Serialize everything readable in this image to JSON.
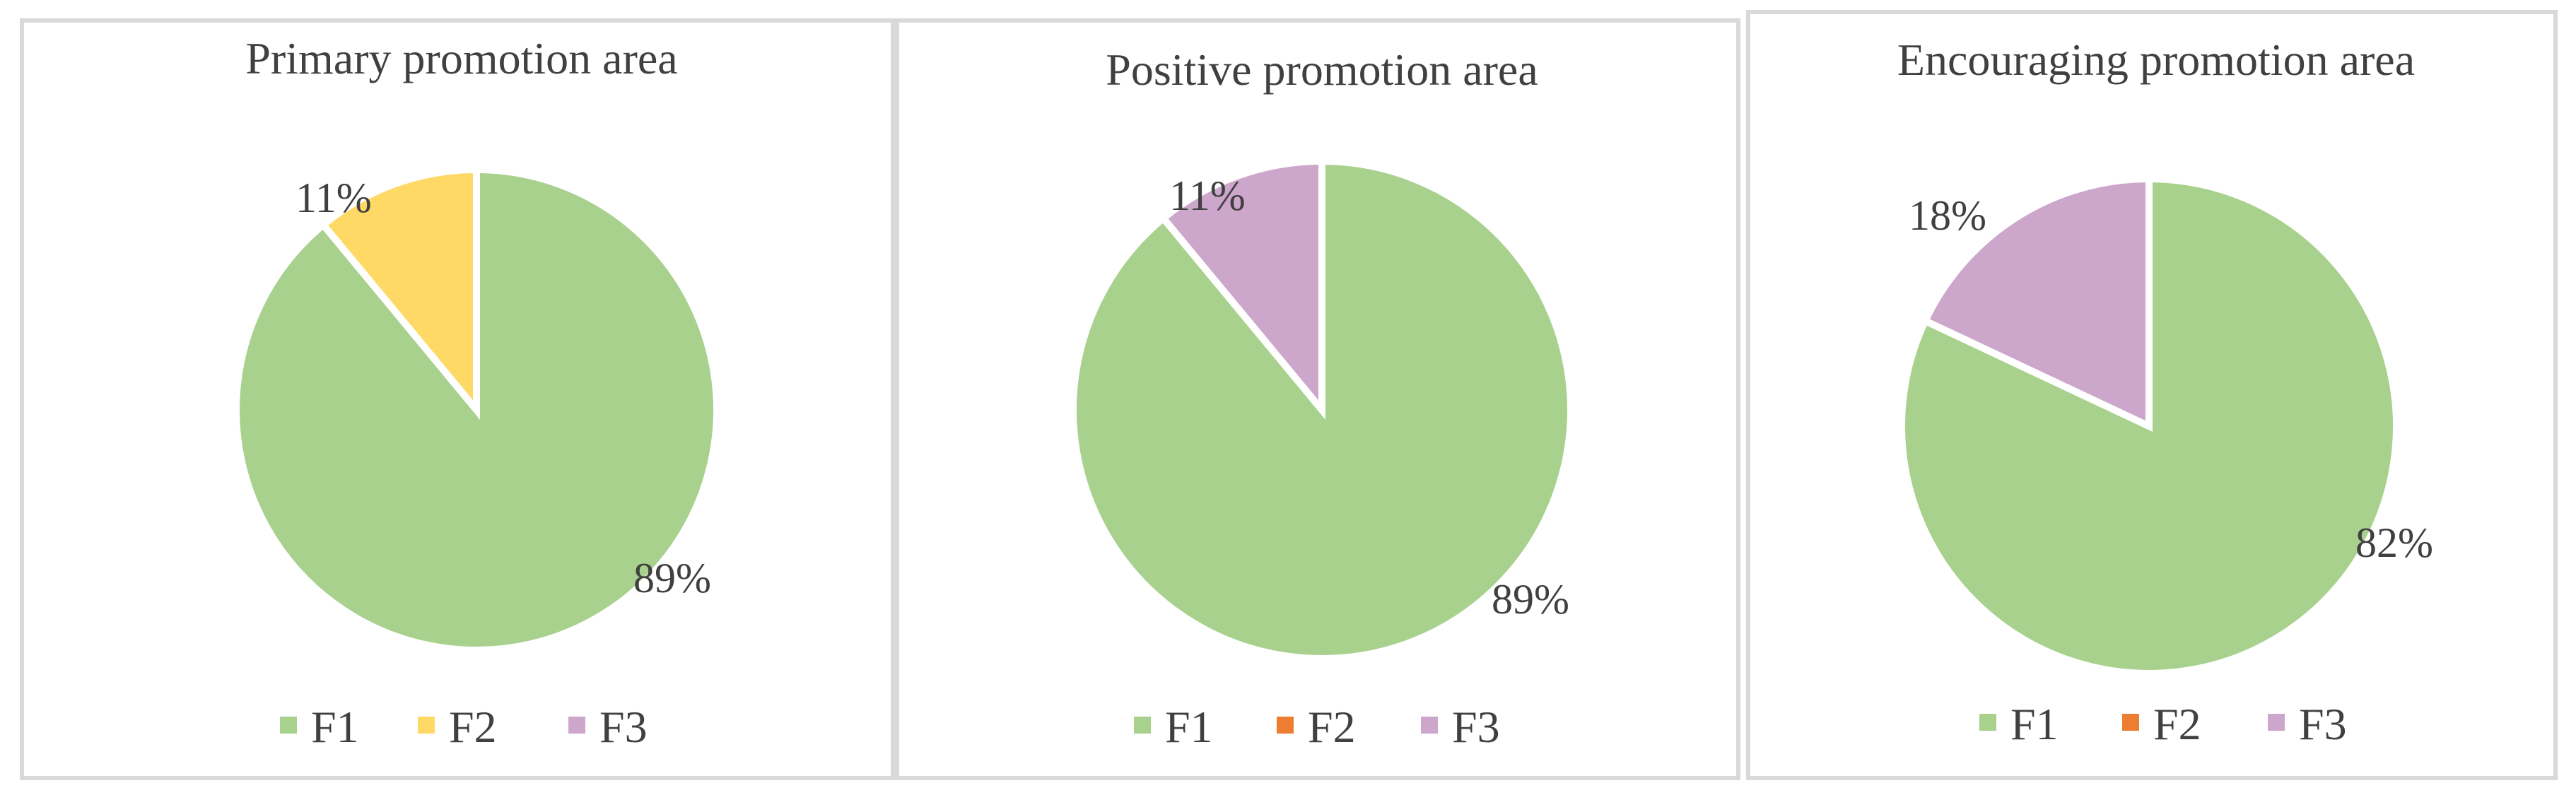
{
  "chart_data": [
    {
      "type": "pie",
      "title": "Primary promotion area",
      "categories": [
        "F1",
        "F2",
        "F3"
      ],
      "values": [
        89,
        11,
        0
      ],
      "data_labels": [
        "89%",
        "11%",
        ""
      ],
      "colors": [
        "#a9d18e",
        "#ffd966",
        "#cda6cc"
      ],
      "legend_position": "bottom",
      "legend": [
        "F1",
        "F2",
        "F3"
      ]
    },
    {
      "type": "pie",
      "title": "Positive promotion area",
      "categories": [
        "F1",
        "F2",
        "F3"
      ],
      "values": [
        89,
        0,
        11
      ],
      "data_labels": [
        "89%",
        "",
        "11%"
      ],
      "colors": [
        "#a9d18e",
        "#ed7d31",
        "#cda6cc"
      ],
      "legend_position": "bottom",
      "legend": [
        "F1",
        "F2",
        "F3"
      ]
    },
    {
      "type": "pie",
      "title": "Encouraging promotion area",
      "categories": [
        "F1",
        "F2",
        "F3"
      ],
      "values": [
        82,
        0,
        18
      ],
      "data_labels": [
        "82%",
        "",
        "18%"
      ],
      "colors": [
        "#a9d18e",
        "#ed7d31",
        "#cda6cc"
      ],
      "legend_position": "bottom",
      "legend": [
        "F1",
        "F2",
        "F3"
      ]
    }
  ]
}
